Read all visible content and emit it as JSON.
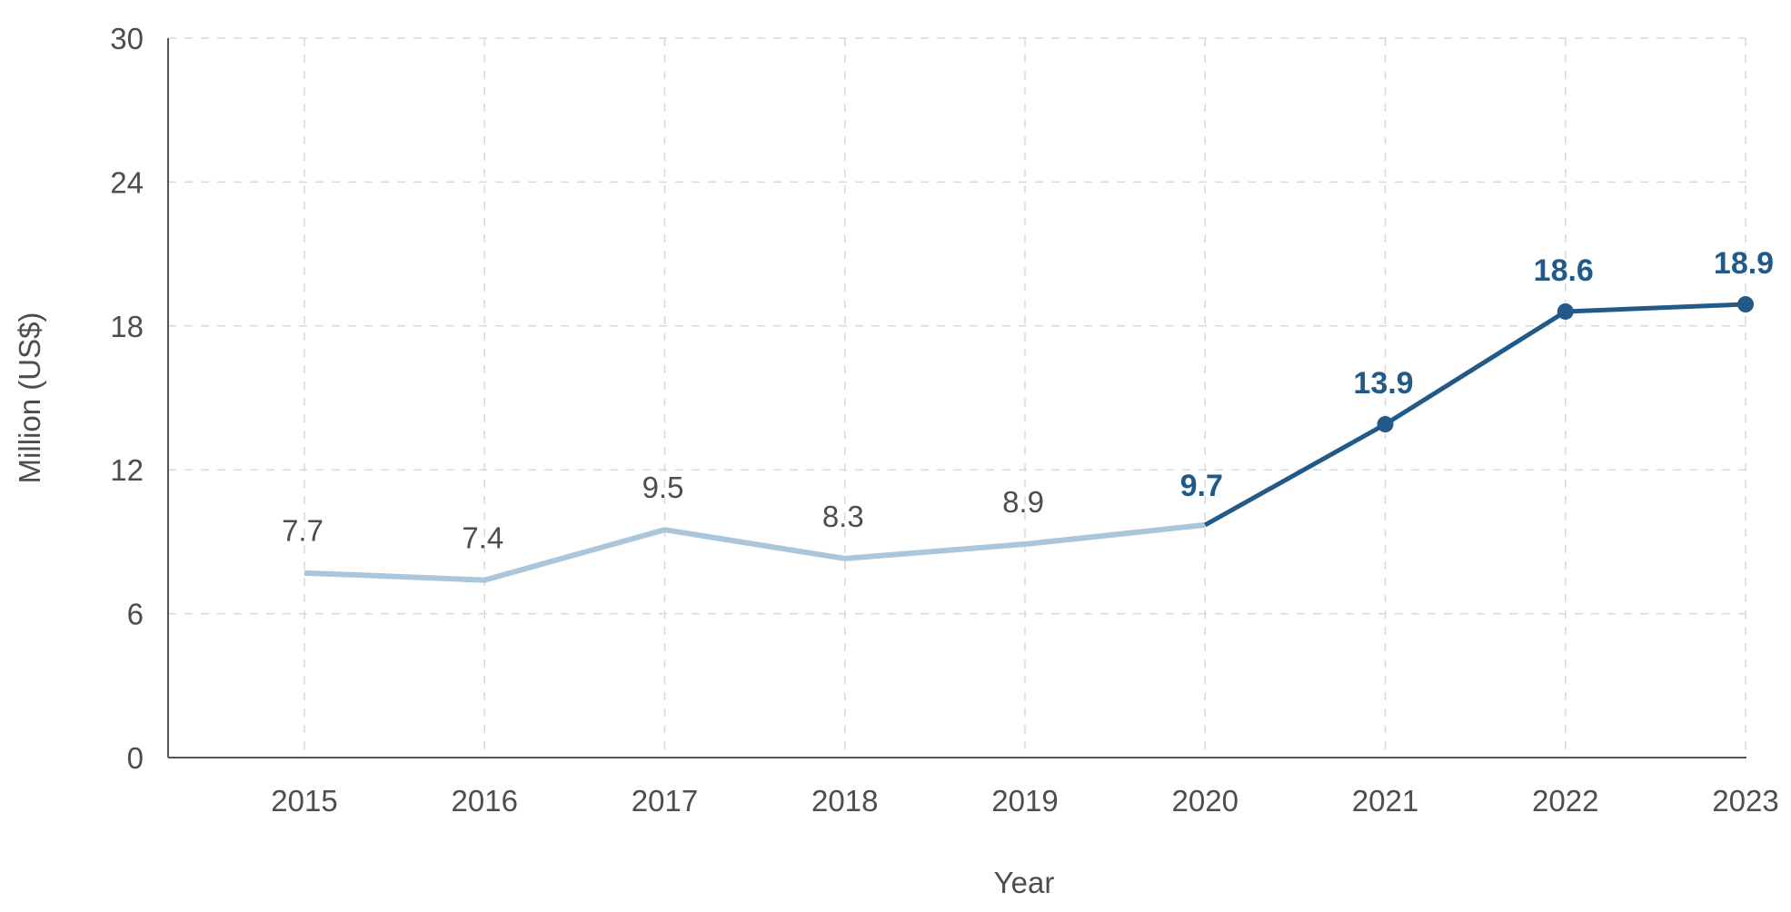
{
  "chart_data": {
    "type": "line",
    "title": "",
    "xlabel": "Year",
    "ylabel": "Million (US$)",
    "categories": [
      "2015",
      "2016",
      "2017",
      "2018",
      "2019",
      "2020",
      "2021",
      "2022",
      "2023"
    ],
    "ylim": [
      0,
      30
    ],
    "yticks": [
      0,
      6,
      12,
      18,
      24,
      30
    ],
    "grid": true,
    "legend": "none",
    "series": [
      {
        "values": [
          7.7,
          7.4,
          9.5,
          8.3,
          8.9,
          9.7,
          13.9,
          18.6,
          18.9
        ],
        "labels": [
          "7.7",
          "7.4",
          "9.5",
          "8.3",
          "8.9",
          "9.7",
          "13.9",
          "18.6",
          "18.9"
        ],
        "highlight_from_index": 5,
        "marker_indices": [
          6,
          7,
          8
        ]
      }
    ],
    "colors": {
      "historical": "#a9c6da",
      "recent": "#215a89",
      "axis": "#555555",
      "grid": "#d9d9d9",
      "text": "#4d4d4d"
    }
  }
}
